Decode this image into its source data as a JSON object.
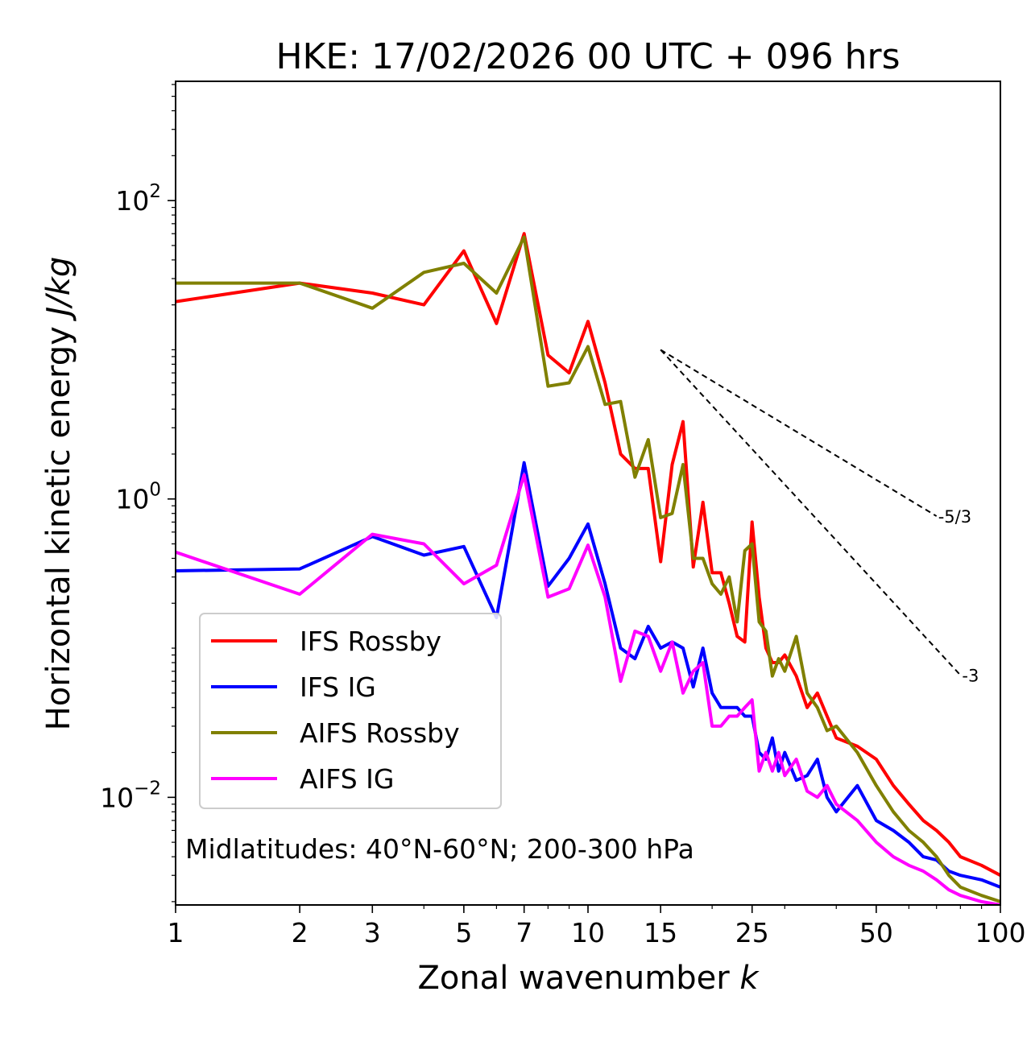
{
  "chart_data": {
    "type": "line",
    "title": "HKE: 17/02/2026 00 UTC + 096 hrs",
    "xlabel": "Zonal wavenumber",
    "xlabel_var": "k",
    "ylabel": "Horizontal kinetic energy",
    "ylabel_unit": "J/kg",
    "xscale": "log",
    "yscale": "log",
    "xlim": [
      1,
      100
    ],
    "ylim": [
      0.0019,
      630
    ],
    "xticks": [
      1,
      2,
      3,
      5,
      7,
      10,
      15,
      25,
      50,
      100
    ],
    "xtick_labels": [
      "1",
      "2",
      "3",
      "5",
      "7",
      "10",
      "15",
      "25",
      "50",
      "100"
    ],
    "yticks": [
      {
        "value": 100,
        "base": "10",
        "exp": "2"
      },
      {
        "value": 1,
        "base": "10",
        "exp": "0"
      },
      {
        "value": 0.01,
        "base": "10",
        "exp": "−2"
      }
    ],
    "annotation": "Midlatitudes: 40°N-60°N; 200-300 hPa",
    "legend": {
      "position": "lower-left",
      "labels": [
        "IFS Rossby",
        "IFS IG",
        "AIFS Rossby",
        "AIFS IG"
      ]
    },
    "reference_lines": [
      {
        "label": "-5/3",
        "slope": -1.6667,
        "x0": 15,
        "y0": 10.0,
        "x1": 70
      },
      {
        "label": "-3",
        "slope": -3,
        "x0": 15,
        "y0": 10.0,
        "x1": 80
      }
    ],
    "series": [
      {
        "name": "IFS Rossby",
        "color": "#ff0000",
        "x": [
          1,
          2,
          3,
          4,
          5,
          6,
          7,
          8,
          9,
          10,
          11,
          12,
          13,
          14,
          15,
          16,
          17,
          18,
          19,
          20,
          21,
          22,
          23,
          24,
          25,
          26,
          27,
          28,
          29,
          30,
          32,
          34,
          36,
          38,
          40,
          45,
          50,
          55,
          60,
          65,
          70,
          75,
          80,
          90,
          100
        ],
        "y": [
          21,
          28,
          24,
          20,
          46,
          15,
          60,
          9.2,
          7,
          15.5,
          6,
          2.0,
          1.6,
          1.6,
          0.38,
          1.7,
          3.3,
          0.35,
          0.95,
          0.32,
          0.32,
          0.2,
          0.12,
          0.11,
          0.7,
          0.22,
          0.1,
          0.08,
          0.08,
          0.09,
          0.065,
          0.04,
          0.05,
          0.035,
          0.025,
          0.022,
          0.018,
          0.012,
          0.009,
          0.007,
          0.006,
          0.005,
          0.004,
          0.0035,
          0.003
        ]
      },
      {
        "name": "IFS IG",
        "color": "#0000ff",
        "x": [
          1,
          2,
          3,
          4,
          5,
          6,
          7,
          8,
          9,
          10,
          11,
          12,
          13,
          14,
          15,
          16,
          17,
          18,
          19,
          20,
          21,
          22,
          23,
          24,
          25,
          26,
          27,
          28,
          29,
          30,
          32,
          34,
          36,
          38,
          40,
          45,
          50,
          55,
          60,
          65,
          70,
          75,
          80,
          90,
          100
        ],
        "y": [
          0.33,
          0.34,
          0.56,
          0.42,
          0.48,
          0.16,
          1.75,
          0.26,
          0.4,
          0.68,
          0.27,
          0.1,
          0.085,
          0.14,
          0.1,
          0.11,
          0.1,
          0.055,
          0.1,
          0.05,
          0.04,
          0.04,
          0.04,
          0.035,
          0.035,
          0.02,
          0.018,
          0.025,
          0.015,
          0.02,
          0.013,
          0.014,
          0.018,
          0.01,
          0.008,
          0.012,
          0.007,
          0.006,
          0.005,
          0.004,
          0.0038,
          0.0032,
          0.003,
          0.0028,
          0.0025
        ]
      },
      {
        "name": "AIFS Rossby",
        "color": "#808000",
        "x": [
          1,
          2,
          3,
          4,
          5,
          6,
          7,
          8,
          9,
          10,
          11,
          12,
          13,
          14,
          15,
          16,
          17,
          18,
          19,
          20,
          21,
          22,
          23,
          24,
          25,
          26,
          27,
          28,
          29,
          30,
          32,
          34,
          36,
          38,
          40,
          45,
          50,
          55,
          60,
          65,
          70,
          75,
          80,
          90,
          100
        ],
        "y": [
          28,
          28,
          19,
          33,
          38,
          24,
          57,
          5.7,
          6,
          10.5,
          4.3,
          4.5,
          1.4,
          2.5,
          0.75,
          0.8,
          1.7,
          0.4,
          0.4,
          0.27,
          0.23,
          0.3,
          0.15,
          0.45,
          0.5,
          0.15,
          0.13,
          0.065,
          0.085,
          0.07,
          0.12,
          0.05,
          0.04,
          0.028,
          0.03,
          0.02,
          0.012,
          0.008,
          0.006,
          0.005,
          0.004,
          0.003,
          0.0025,
          0.0022,
          0.002
        ]
      },
      {
        "name": "AIFS IG",
        "color": "#ff00ff",
        "x": [
          1,
          2,
          3,
          4,
          5,
          6,
          7,
          8,
          9,
          10,
          11,
          12,
          13,
          14,
          15,
          16,
          17,
          18,
          19,
          20,
          21,
          22,
          23,
          24,
          25,
          26,
          27,
          28,
          29,
          30,
          32,
          34,
          36,
          38,
          40,
          45,
          50,
          55,
          60,
          65,
          70,
          75,
          80,
          90,
          100
        ],
        "y": [
          0.44,
          0.23,
          0.58,
          0.5,
          0.27,
          0.36,
          1.45,
          0.22,
          0.25,
          0.49,
          0.22,
          0.06,
          0.13,
          0.12,
          0.07,
          0.11,
          0.05,
          0.07,
          0.08,
          0.03,
          0.03,
          0.035,
          0.035,
          0.04,
          0.045,
          0.015,
          0.02,
          0.015,
          0.02,
          0.014,
          0.018,
          0.011,
          0.01,
          0.012,
          0.009,
          0.007,
          0.005,
          0.004,
          0.0035,
          0.0032,
          0.0028,
          0.0024,
          0.0022,
          0.002,
          0.0019
        ]
      }
    ]
  }
}
